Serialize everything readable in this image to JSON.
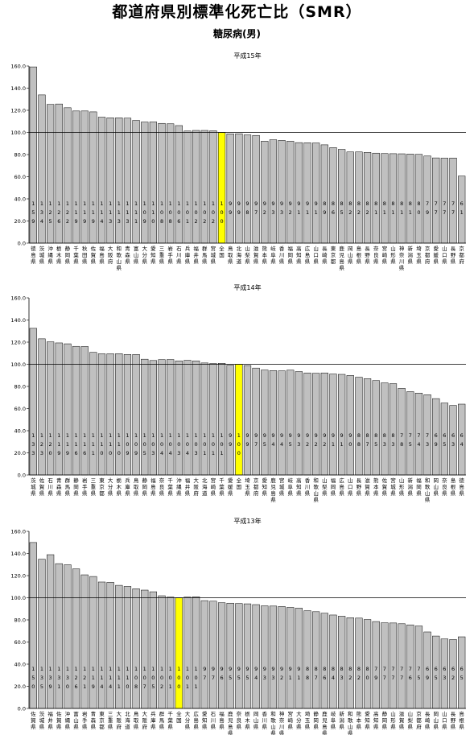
{
  "title": "都道府県別標準化死亡比（SMR）",
  "subtitle": "糖尿病(男)",
  "colors": {
    "bar": "#c0c0c0",
    "highlight": "#ffff00",
    "reference_line": "#000000",
    "bar_border": "#000000"
  },
  "chart_data": [
    {
      "type": "bar",
      "title": "平成15年",
      "ylim": [
        0,
        160
      ],
      "yticks": [
        "0.0",
        "20.0",
        "40.0",
        "60.0",
        "80.0",
        "100.0",
        "120.0",
        "140.0",
        "160.0"
      ],
      "reference_line": 100,
      "highlight": "全国",
      "categories": [
        "徳島県",
        "茨城県",
        "沖縄県",
        "栃木県",
        "静岡県",
        "千葉県",
        "秋田県",
        "佐賀県",
        "福島県",
        "大阪府",
        "和歌山県",
        "青森県",
        "富山県",
        "大分県",
        "愛知県",
        "三重県",
        "岩手県",
        "石川県",
        "兵庫県",
        "福井県",
        "群馬県",
        "宮城県",
        "全国",
        "鳥取県",
        "北海道",
        "山梨県",
        "滋賀県",
        "熊本県",
        "岐阜県",
        "香川県",
        "福岡県",
        "高知県",
        "広島県",
        "山口県",
        "長崎県",
        "東京都",
        "鹿児島県",
        "岡山県",
        "島根県",
        "長野県",
        "奈良県",
        "宮崎県",
        "山形県",
        "神奈川県",
        "新潟県",
        "埼玉県",
        "京都府",
        "愛媛県",
        "山口県",
        "長野県",
        "京都府"
      ],
      "values": [
        159.2,
        133.9,
        125.3,
        125.7,
        122.3,
        119.4,
        119.4,
        118.6,
        113.8,
        113.2,
        113.2,
        112.9,
        110.9,
        109.4,
        109.5,
        108.2,
        107.8,
        106.2,
        101.3,
        101.8,
        101.8,
        101.5,
        100.0,
        98.7,
        98.8,
        97.8,
        97.3,
        92.1,
        93.4,
        92.8,
        92.1,
        90.8,
        90.7,
        90.5,
        88.8,
        86.3,
        84.7,
        82.4,
        82.4,
        82.0,
        81.3,
        80.9,
        80.8,
        80.7,
        80.5,
        80.2,
        78.7,
        77.0,
        76.8,
        76.9,
        60.6
      ]
    },
    {
      "type": "bar",
      "title": "平成14年",
      "ylim": [
        0,
        160
      ],
      "yticks": [
        "0.0",
        "20.0",
        "40.0",
        "60.0",
        "80.0",
        "100.0",
        "120.0",
        "140.0",
        "160.0"
      ],
      "reference_line": 100,
      "highlight": "全国",
      "categories": [
        "茨城県",
        "佐賀県",
        "石川県",
        "青森県",
        "群馬県",
        "静岡県",
        "岩手県",
        "三重県",
        "東京都",
        "大分県",
        "栃木県",
        "兵庫県",
        "鳥取県",
        "静岡県",
        "福島県",
        "奈良県",
        "千葉県",
        "沖縄県",
        "福井県",
        "大阪府",
        "北海道",
        "宮崎県",
        "千葉県",
        "愛媛県",
        "全国",
        "埼玉県",
        "京都府",
        "愛知県",
        "鹿児島県",
        "宮城県",
        "岐阜県",
        "高知県",
        "香川県",
        "和歌山県",
        "山梨県",
        "福岡県",
        "広島県",
        "山口県",
        "長野県",
        "滋賀県",
        "熊本県",
        "佐賀県",
        "宮城県",
        "山形県",
        "新潟県",
        "福岡県",
        "和歌山県",
        "岡山県",
        "奈良県",
        "島根県",
        "徳島県"
      ],
      "values": [
        132.5,
        123.0,
        120.3,
        119.3,
        118.5,
        116.2,
        116.1,
        110.8,
        109.5,
        109.5,
        109.6,
        108.9,
        108.9,
        104.6,
        103.4,
        104.2,
        104.3,
        103.1,
        103.6,
        103.1,
        101.2,
        100.7,
        100.9,
        99.2,
        100.0,
        98.9,
        96.6,
        94.8,
        94.3,
        94.1,
        94.7,
        93.4,
        92.2,
        91.9,
        92.2,
        91.2,
        90.9,
        89.9,
        88.3,
        87.0,
        85.3,
        83.2,
        82.5,
        78.3,
        75.3,
        74.0,
        72.5,
        69.0,
        65.0,
        62.8,
        64.0
      ]
    },
    {
      "type": "bar",
      "title": "平成13年",
      "ylim": [
        0,
        160
      ],
      "yticks": [
        "0.0",
        "20.0",
        "40.0",
        "60.0",
        "80.0",
        "100.0",
        "120.0",
        "140.0",
        "160.0"
      ],
      "reference_line": 100,
      "highlight": "全国",
      "categories": [
        "佐賀県",
        "茨城県",
        "福井県",
        "佐賀県",
        "沖縄県",
        "富山県",
        "岩手県",
        "青森県",
        "東京都",
        "三重県",
        "大阪府",
        "北海道",
        "鳥取県",
        "大阪府",
        "兵庫県",
        "群馬県",
        "千葉県",
        "全国",
        "大分県",
        "広島県",
        "愛知県",
        "石川県",
        "福島県",
        "鹿児島県",
        "奈良県",
        "栃木県",
        "岡山県",
        "香川県",
        "和歌山県",
        "神奈川県",
        "宮崎県",
        "大分県",
        "埼玉県",
        "静岡県",
        "鹿児島県",
        "岐阜県",
        "新潟県",
        "和歌山県",
        "熊本県",
        "愛知県",
        "高知県",
        "静岡県",
        "山形県",
        "滋賀県",
        "山梨県",
        "京都府",
        "長崎県",
        "岡山県",
        "山口県",
        "長野県",
        "島根県"
      ],
      "values": [
        149.9,
        134.8,
        138.9,
        130.8,
        129.8,
        126.1,
        120.7,
        119.2,
        114.2,
        113.9,
        111.2,
        110.2,
        108.1,
        106.9,
        105.4,
        101.8,
        100.6,
        100.0,
        100.6,
        100.9,
        97.4,
        96.9,
        95.5,
        95.1,
        94.8,
        94.5,
        93.8,
        92.7,
        92.5,
        92.1,
        91.3,
        90.6,
        88.3,
        87.4,
        86.0,
        84.4,
        83.3,
        82.0,
        81.6,
        80.3,
        78.5,
        77.4,
        77.2,
        76.5,
        75.5,
        74.5,
        69.1,
        65.4,
        62.8,
        62.3,
        64.7
      ]
    }
  ]
}
